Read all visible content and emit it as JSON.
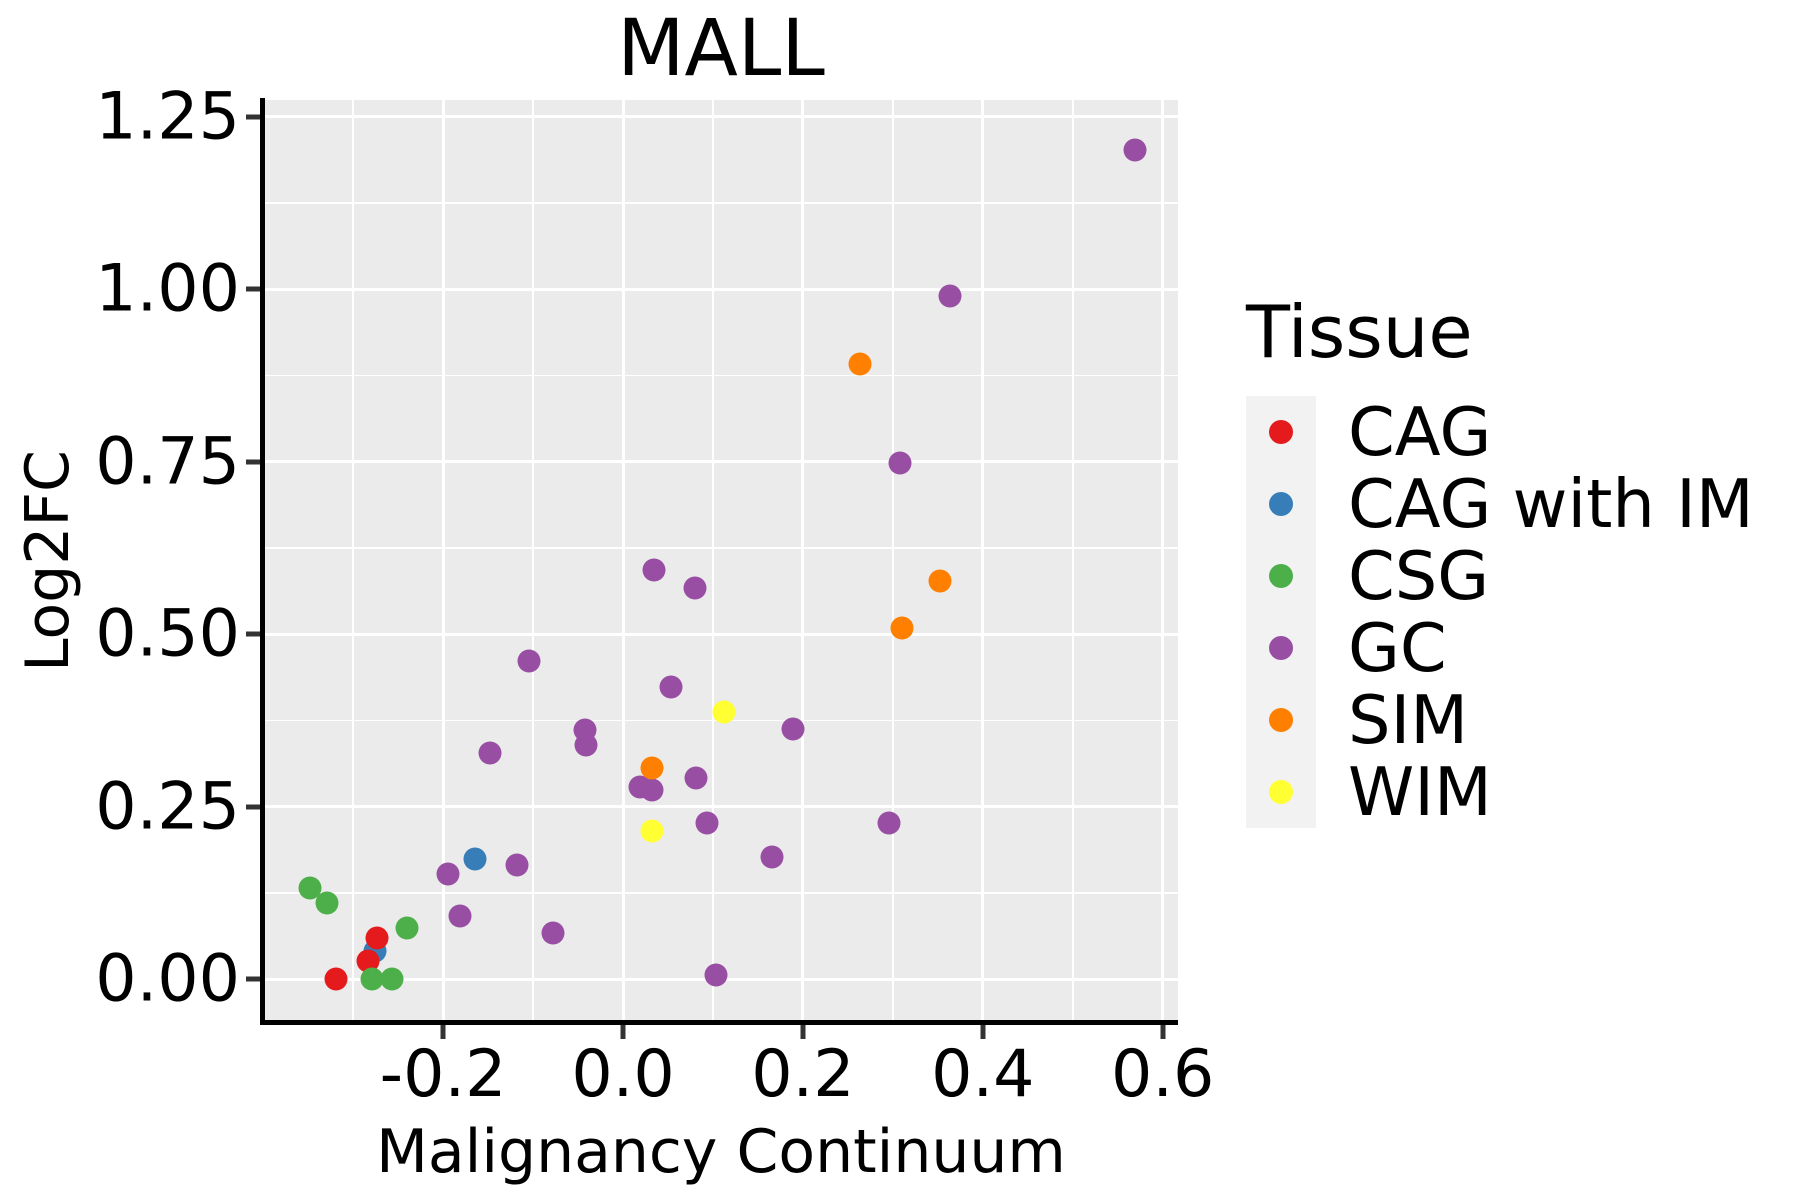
{
  "figure": {
    "title": "MALL"
  },
  "legend": {
    "title": "Tissue",
    "items": [
      {
        "label": "CAG",
        "color": "#E41A1C"
      },
      {
        "label": "CAG with IM",
        "color": "#377EB8"
      },
      {
        "label": "CSG",
        "color": "#4DAF4A"
      },
      {
        "label": "GC",
        "color": "#984EA3"
      },
      {
        "label": "SIM",
        "color": "#FF7F00"
      },
      {
        "label": "WIM",
        "color": "#FFFF33"
      }
    ]
  },
  "chart_data": {
    "type": "scatter",
    "title": "MALL",
    "xlabel": "Malignancy Continuum",
    "ylabel": "Log2FC",
    "xlim": [
      -0.398,
      0.617
    ],
    "ylim": [
      -0.062,
      1.274
    ],
    "grid": true,
    "legend_position": "right",
    "x_ticks": {
      "values": [
        -0.2,
        0.0,
        0.2,
        0.4,
        0.6
      ],
      "labels": [
        "-0.2",
        "0.0",
        "0.2",
        "0.4",
        "0.6"
      ],
      "minor": [
        -0.3,
        -0.1,
        0.1,
        0.3,
        0.5
      ]
    },
    "y_ticks": {
      "values": [
        0.0,
        0.25,
        0.5,
        0.75,
        1.0,
        1.25
      ],
      "labels": [
        "0.00",
        "0.25",
        "0.50",
        "0.75",
        "1.00",
        "1.25"
      ],
      "minor": [
        0.125,
        0.375,
        0.625,
        0.875,
        1.125
      ]
    },
    "series": [
      {
        "name": "CAG",
        "color": "#E41A1C",
        "points": [
          [
            -0.274,
            0.059
          ],
          [
            -0.283,
            0.026
          ],
          [
            -0.319,
            0.0
          ]
        ]
      },
      {
        "name": "CAG with IM",
        "color": "#377EB8",
        "points": [
          [
            -0.164,
            0.174
          ],
          [
            -0.276,
            0.041
          ]
        ]
      },
      {
        "name": "CSG",
        "color": "#4DAF4A",
        "points": [
          [
            -0.348,
            0.132
          ],
          [
            -0.329,
            0.11
          ],
          [
            -0.24,
            0.074
          ],
          [
            -0.279,
            0.0
          ],
          [
            -0.257,
            0.001
          ]
        ]
      },
      {
        "name": "GC",
        "color": "#984EA3",
        "points": [
          [
            0.569,
            1.202
          ],
          [
            0.364,
            0.99
          ],
          [
            0.308,
            0.748
          ],
          [
            0.034,
            0.593
          ],
          [
            0.08,
            0.567
          ],
          [
            -0.104,
            0.461
          ],
          [
            0.053,
            0.423
          ],
          [
            -0.042,
            0.361
          ],
          [
            -0.041,
            0.34
          ],
          [
            -0.148,
            0.328
          ],
          [
            0.189,
            0.362
          ],
          [
            0.019,
            0.278
          ],
          [
            0.032,
            0.274
          ],
          [
            0.081,
            0.291
          ],
          [
            0.093,
            0.226
          ],
          [
            0.296,
            0.226
          ],
          [
            0.166,
            0.177
          ],
          [
            -0.194,
            0.152
          ],
          [
            -0.118,
            0.165
          ],
          [
            -0.181,
            0.091
          ],
          [
            -0.078,
            0.067
          ],
          [
            0.103,
            0.006
          ]
        ]
      },
      {
        "name": "SIM",
        "color": "#FF7F00",
        "points": [
          [
            0.263,
            0.891
          ],
          [
            0.352,
            0.577
          ],
          [
            0.31,
            0.509
          ],
          [
            0.032,
            0.306
          ]
        ]
      },
      {
        "name": "WIM",
        "color": "#FFFF33",
        "points": [
          [
            0.112,
            0.387
          ],
          [
            0.032,
            0.215
          ]
        ]
      }
    ]
  }
}
